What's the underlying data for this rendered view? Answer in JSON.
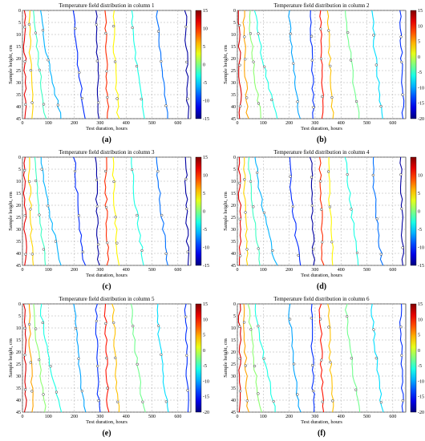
{
  "figure": {
    "panels": [
      {
        "id": "a",
        "title": "Temperature field distribution in column 1",
        "sublabel": "(a)",
        "colorbar_ticks": [
          "15",
          "10",
          "5",
          "0",
          "-5",
          "-10",
          "-15"
        ],
        "cb_min": -15,
        "cb_max": 15
      },
      {
        "id": "b",
        "title": "Temperature field distribution in column 2",
        "sublabel": "(b)",
        "colorbar_ticks": [
          "15",
          "10",
          "5",
          "0",
          "-5",
          "-10",
          "-15",
          "-20"
        ],
        "cb_min": -20,
        "cb_max": 15
      },
      {
        "id": "c",
        "title": "Temperature field distribution in column 3",
        "sublabel": "(c)",
        "colorbar_ticks": [
          "15",
          "10",
          "5",
          "0",
          "-5",
          "-10",
          "-15"
        ],
        "cb_min": -15,
        "cb_max": 15
      },
      {
        "id": "d",
        "title": "Temperature field distribution in column 4",
        "sublabel": "(d)",
        "colorbar_ticks": [
          "10",
          "5",
          "0",
          "-5",
          "-10",
          "-15"
        ],
        "cb_min": -15,
        "cb_max": 15
      },
      {
        "id": "e",
        "title": "Temperature field distribution in column 5",
        "sublabel": "(e)",
        "colorbar_ticks": [
          "15",
          "10",
          "5",
          "0",
          "-5",
          "-10",
          "-15",
          "-20"
        ],
        "cb_min": -20,
        "cb_max": 15
      },
      {
        "id": "f",
        "title": "Temperature field distribution in column 6",
        "sublabel": "(f)",
        "colorbar_ticks": [
          "15",
          "10",
          "5",
          "0",
          "-5",
          "-10",
          "-15",
          "-20"
        ],
        "cb_min": -20,
        "cb_max": 15
      }
    ],
    "xlabel": "Test duration, hours",
    "ylabel": "Sample height, cm",
    "xticks": [
      "0",
      "100",
      "200",
      "300",
      "400",
      "500",
      "600"
    ],
    "yticks": [
      "0",
      "5",
      "10",
      "15",
      "20",
      "25",
      "30",
      "35",
      "40",
      "45"
    ]
  },
  "chart_data": {
    "type": "heatmap",
    "x_range": [
      0,
      650
    ],
    "y_range": [
      0,
      45
    ],
    "y_inverted": true,
    "grid": true,
    "colormap": "jet",
    "isotherms_per_panel": [
      {
        "x_at_top": 8,
        "x_at_bottom": 12,
        "temp": 12
      },
      {
        "x_at_top": 25,
        "x_at_bottom": 40,
        "temp": 5
      },
      {
        "x_at_top": 45,
        "x_at_bottom": 90,
        "temp": -2
      },
      {
        "x_at_top": 70,
        "x_at_bottom": 150,
        "temp": -6
      },
      {
        "x_at_top": 200,
        "x_at_bottom": 240,
        "temp": -10
      },
      {
        "x_at_top": 285,
        "x_at_bottom": 295,
        "temp": -14
      },
      {
        "x_at_top": 320,
        "x_at_bottom": 330,
        "temp": 10
      },
      {
        "x_at_top": 350,
        "x_at_bottom": 370,
        "temp": 4
      },
      {
        "x_at_top": 420,
        "x_at_bottom": 470,
        "temp": -3
      },
      {
        "x_at_top": 520,
        "x_at_bottom": 560,
        "temp": -8
      },
      {
        "x_at_top": 630,
        "x_at_bottom": 640,
        "temp": -14
      }
    ]
  }
}
